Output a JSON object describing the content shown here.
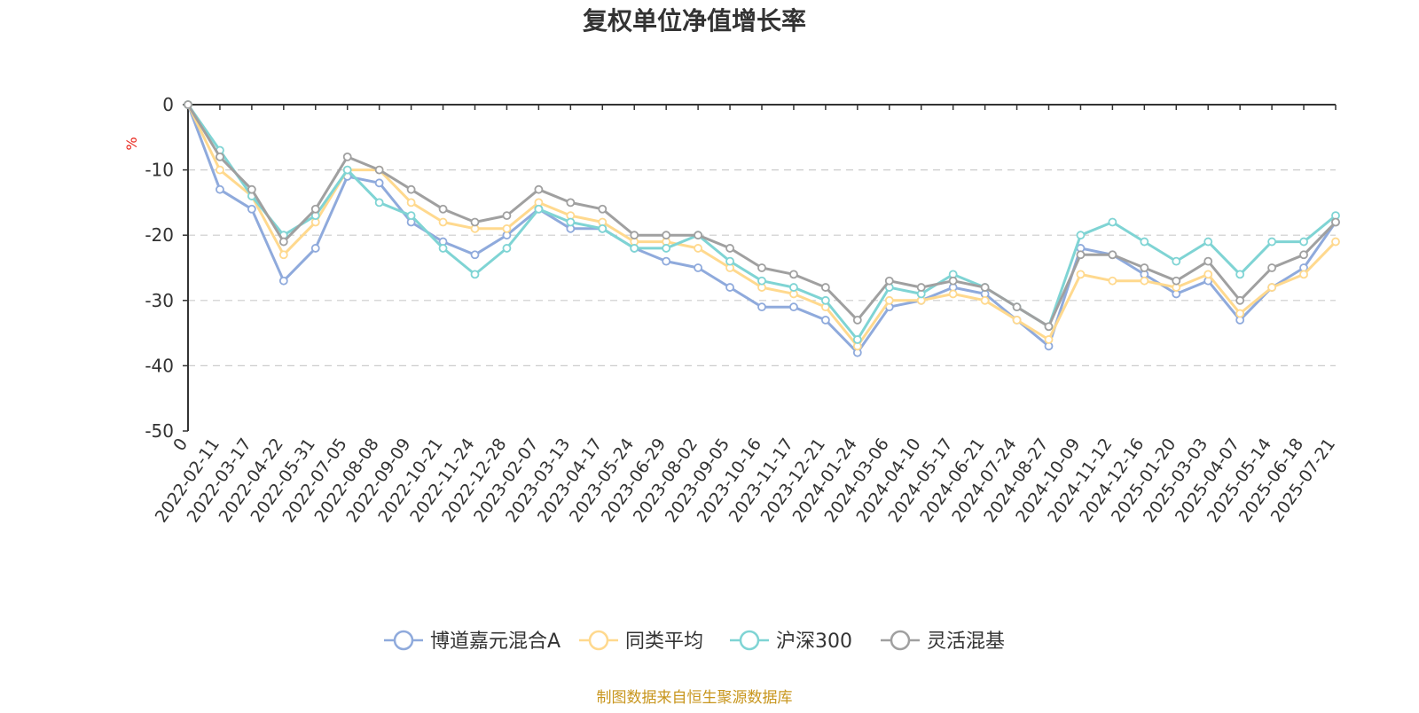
{
  "chart_data": {
    "type": "line",
    "title": "复权单位净值增长率",
    "yunit": "%",
    "ylim": [
      -50,
      0
    ],
    "yticks": [
      0,
      -10,
      -20,
      -30,
      -40,
      -50
    ],
    "grid": true,
    "legend_position": "bottom",
    "x_tick_labels": [
      "0",
      "2022-02-11",
      "2022-03-17",
      "2022-04-22",
      "2022-05-31",
      "2022-07-05",
      "2022-08-08",
      "2022-09-09",
      "2022-10-21",
      "2022-11-24",
      "2022-12-28",
      "2023-02-07",
      "2023-03-13",
      "2023-04-17",
      "2023-05-24",
      "2023-06-29",
      "2023-08-02",
      "2023-09-05",
      "2023-10-16",
      "2023-11-17",
      "2023-12-21",
      "2024-01-24",
      "2024-03-06",
      "2024-04-10",
      "2024-05-17",
      "2024-06-21",
      "2024-07-24",
      "2024-08-27",
      "2024-10-09",
      "2024-11-12",
      "2024-12-16",
      "2025-01-20",
      "2025-03-03",
      "2025-04-07",
      "2025-05-14",
      "2025-06-18",
      "2025-07-21"
    ],
    "x": [
      "0",
      "2022-02-11",
      "2022-03-17",
      "2022-04-22",
      "2022-05-31",
      "2022-07-05",
      "2022-08-08",
      "2022-09-09",
      "2022-10-21",
      "2022-11-24",
      "2022-12-28",
      "2023-02-07",
      "2023-03-13",
      "2023-04-17",
      "2023-05-24",
      "2023-06-29",
      "2023-08-02",
      "2023-09-05",
      "2023-10-16",
      "2023-11-17",
      "2023-12-21",
      "2024-01-24",
      "2024-03-06",
      "2024-04-10",
      "2024-05-17",
      "2024-06-21",
      "2024-07-24",
      "2024-08-27",
      "2024-10-09",
      "2024-11-12",
      "2024-12-16",
      "2025-01-20",
      "2025-03-03",
      "2025-04-07",
      "2025-05-14",
      "2025-06-18",
      "2025-07-21"
    ],
    "series": [
      {
        "name": "博道嘉元混合A",
        "color": "#8FAADC",
        "values": [
          0,
          -13,
          -16,
          -27,
          -22,
          -11,
          -12,
          -18,
          -21,
          -23,
          -20,
          -16,
          -19,
          -19,
          -22,
          -24,
          -25,
          -28,
          -31,
          -31,
          -33,
          -38,
          -31,
          -30,
          -28,
          -29,
          -33,
          -37,
          -22,
          -23,
          -26,
          -29,
          -27,
          -33,
          -28,
          -25,
          -18
        ]
      },
      {
        "name": "同类平均",
        "color": "#FFD98E",
        "values": [
          0,
          -10,
          -14,
          -23,
          -18,
          -10,
          -10,
          -15,
          -18,
          -19,
          -19,
          -15,
          -17,
          -18,
          -21,
          -21,
          -22,
          -25,
          -28,
          -29,
          -31,
          -37,
          -30,
          -30,
          -29,
          -30,
          -33,
          -36,
          -26,
          -27,
          -27,
          -28,
          -26,
          -32,
          -28,
          -26,
          -21
        ]
      },
      {
        "name": "沪深300",
        "color": "#7FD4D4",
        "values": [
          0,
          -7,
          -14,
          -20,
          -17,
          -10,
          -15,
          -17,
          -22,
          -26,
          -22,
          -16,
          -18,
          -19,
          -22,
          -22,
          -20,
          -24,
          -27,
          -28,
          -30,
          -36,
          -28,
          -29,
          -26,
          -28,
          -31,
          -34,
          -20,
          -18,
          -21,
          -24,
          -21,
          -26,
          -21,
          -21,
          -17
        ]
      },
      {
        "name": "灵活混基",
        "color": "#A0A0A0",
        "values": [
          0,
          -8,
          -13,
          -21,
          -16,
          -8,
          -10,
          -13,
          -16,
          -18,
          -17,
          -13,
          -15,
          -16,
          -20,
          -20,
          -20,
          -22,
          -25,
          -26,
          -28,
          -33,
          -27,
          -28,
          -27,
          -28,
          -31,
          -34,
          -23,
          -23,
          -25,
          -27,
          -24,
          -30,
          -25,
          -23,
          -18
        ]
      }
    ]
  },
  "footer": {
    "source": "制图数据来自恒生聚源数据库"
  }
}
